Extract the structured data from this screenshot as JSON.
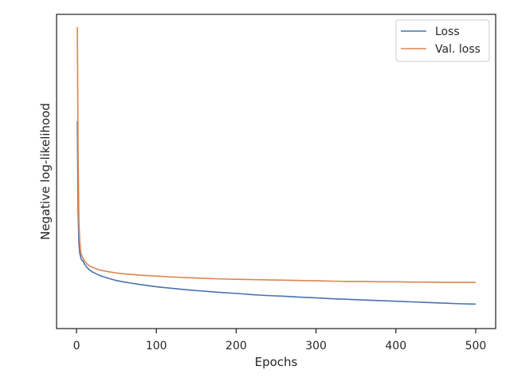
{
  "chart_data": {
    "type": "line",
    "title": "",
    "xlabel": "Epochs",
    "ylabel": "Negative log-likelihood",
    "xlim": [
      -25,
      525
    ],
    "ylim": [
      0,
      1
    ],
    "x_ticks": [
      0,
      100,
      200,
      300,
      400,
      500
    ],
    "x_tick_labels": [
      "0",
      "100",
      "200",
      "300",
      "400",
      "500"
    ],
    "y_tick_labels_visible": false,
    "grid": false,
    "legend": {
      "position": "top-right"
    },
    "series": [
      {
        "name": "Loss",
        "color": "#4c72b0",
        "x": [
          1,
          2,
          3,
          4,
          5,
          6,
          8,
          10,
          13,
          16,
          20,
          25,
          30,
          40,
          50,
          60,
          70,
          80,
          100,
          120,
          140,
          160,
          180,
          200,
          220,
          240,
          260,
          280,
          300,
          320,
          340,
          360,
          380,
          400,
          420,
          440,
          460,
          480,
          500
        ],
        "y": [
          0.66,
          0.37,
          0.27,
          0.24,
          0.23,
          0.22,
          0.215,
          0.205,
          0.195,
          0.187,
          0.18,
          0.174,
          0.168,
          0.16,
          0.153,
          0.148,
          0.144,
          0.14,
          0.133,
          0.128,
          0.123,
          0.119,
          0.115,
          0.112,
          0.108,
          0.105,
          0.103,
          0.1,
          0.098,
          0.095,
          0.093,
          0.091,
          0.089,
          0.087,
          0.085,
          0.083,
          0.081,
          0.079,
          0.078
        ]
      },
      {
        "name": "Val. loss",
        "color": "#dd8452",
        "x": [
          1,
          2,
          3,
          4,
          5,
          6,
          8,
          10,
          13,
          16,
          20,
          25,
          30,
          40,
          50,
          60,
          80,
          100,
          120,
          140,
          160,
          180,
          200,
          220,
          240,
          260,
          280,
          300,
          320,
          340,
          360,
          380,
          400,
          420,
          440,
          460,
          480,
          500
        ],
        "y": [
          0.96,
          0.55,
          0.34,
          0.28,
          0.25,
          0.235,
          0.225,
          0.215,
          0.206,
          0.2,
          0.195,
          0.19,
          0.186,
          0.181,
          0.177,
          0.174,
          0.17,
          0.167,
          0.164,
          0.162,
          0.16,
          0.158,
          0.157,
          0.156,
          0.155,
          0.154,
          0.153,
          0.152,
          0.151,
          0.15,
          0.15,
          0.149,
          0.149,
          0.148,
          0.148,
          0.147,
          0.147,
          0.147
        ]
      }
    ]
  }
}
